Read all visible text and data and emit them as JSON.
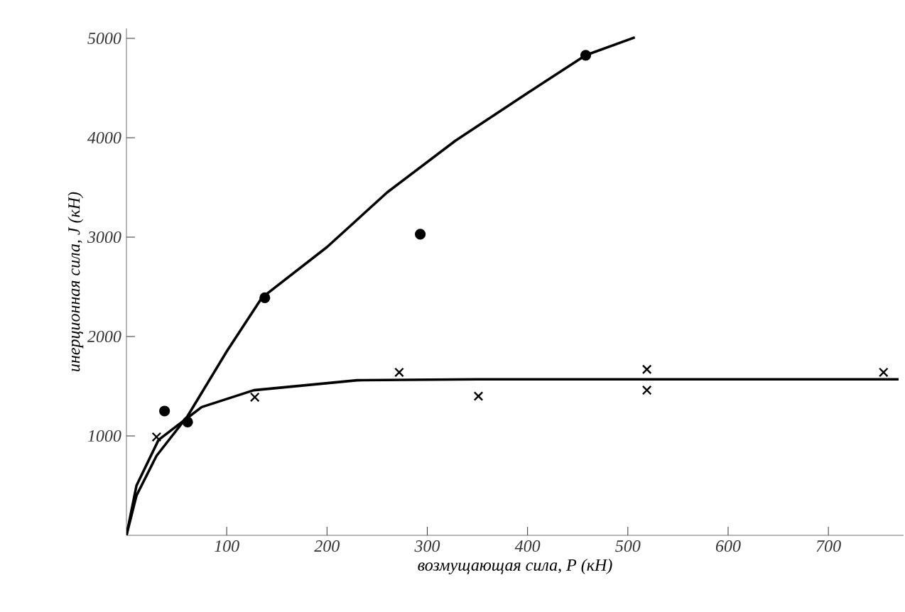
{
  "chart_data": {
    "type": "scatter",
    "xlabel": "возмущающая сила, P (кН)",
    "ylabel": "инерционная сила, J (кН)",
    "xlim": [
      0,
      775
    ],
    "ylim": [
      0,
      5100
    ],
    "xticks": [
      100,
      200,
      300,
      400,
      500,
      600,
      700
    ],
    "yticks": [
      1000,
      2000,
      3000,
      4000,
      5000
    ],
    "grid": false,
    "series": [
      {
        "marker": "circle",
        "color": "#000000",
        "x": [
          38,
          61,
          138,
          293,
          458
        ],
        "values": [
          1250,
          1140,
          2390,
          3030,
          4830
        ]
      },
      {
        "marker": "cross",
        "color": "#000000",
        "x": [
          30,
          128,
          272,
          351,
          519,
          519,
          755
        ],
        "values": [
          990,
          1390,
          1640,
          1400,
          1670,
          1460,
          1640
        ]
      },
      {
        "type": "line",
        "marker": "none",
        "color": "#000000",
        "x": [
          0,
          10,
          30,
          61,
          100,
          135,
          200,
          260,
          328,
          400,
          458,
          507
        ],
        "values": [
          0,
          400,
          800,
          1200,
          1850,
          2390,
          2900,
          3450,
          3970,
          4450,
          4830,
          5010
        ]
      },
      {
        "type": "line",
        "marker": "none",
        "color": "#000000",
        "x": [
          0,
          10,
          32,
          75,
          127,
          230,
          350,
          500,
          770
        ],
        "values": [
          0,
          500,
          960,
          1290,
          1460,
          1560,
          1570,
          1570,
          1570
        ]
      }
    ]
  }
}
